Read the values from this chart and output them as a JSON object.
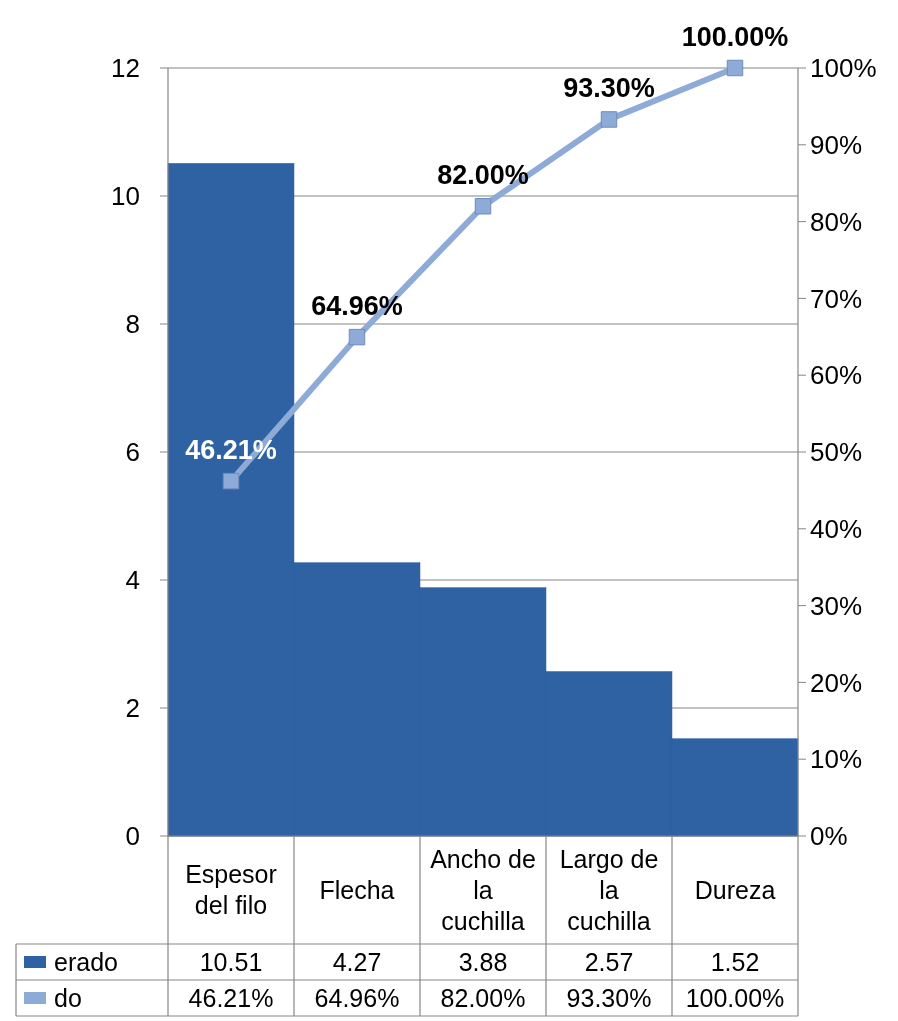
{
  "chart_data": {
    "type": "bar",
    "categories": [
      "Espesor del filo",
      "Flecha",
      "Ancho de la cuchilla",
      "Largo de la cuchilla",
      "Dureza"
    ],
    "series": [
      {
        "name": "erado",
        "color": "#2f62a3",
        "values": [
          10.51,
          4.27,
          3.88,
          2.57,
          1.52
        ],
        "value_labels": [
          "10.51",
          "4.27",
          "3.88",
          "2.57",
          "1.52"
        ]
      },
      {
        "name": "do",
        "type": "line",
        "axis": "y2",
        "color": "#8eaad6",
        "values": [
          46.21,
          64.96,
          82.0,
          93.3,
          100.0
        ],
        "value_labels": [
          "46.21%",
          "64.96%",
          "82.00%",
          "93.30%",
          "100.00%"
        ]
      }
    ],
    "ylim": [
      0,
      12
    ],
    "yticks": [
      0,
      2,
      4,
      6,
      8,
      10,
      12
    ],
    "y2lim": [
      0,
      100
    ],
    "y2ticks": [
      {
        "value": 0,
        "label": "0%"
      },
      {
        "value": 10,
        "label": "10%"
      },
      {
        "value": 20,
        "label": "20%"
      },
      {
        "value": 30,
        "label": "30%"
      },
      {
        "value": 40,
        "label": "40%"
      },
      {
        "value": 50,
        "label": "50%"
      },
      {
        "value": 60,
        "label": "60%"
      },
      {
        "value": 70,
        "label": "70%"
      },
      {
        "value": 80,
        "label": "80%"
      },
      {
        "value": 90,
        "label": "90%"
      },
      {
        "value": 100,
        "label": "100%"
      }
    ],
    "grid": "y",
    "marker": "square",
    "line_style": "solid",
    "legend": "bottom left"
  }
}
